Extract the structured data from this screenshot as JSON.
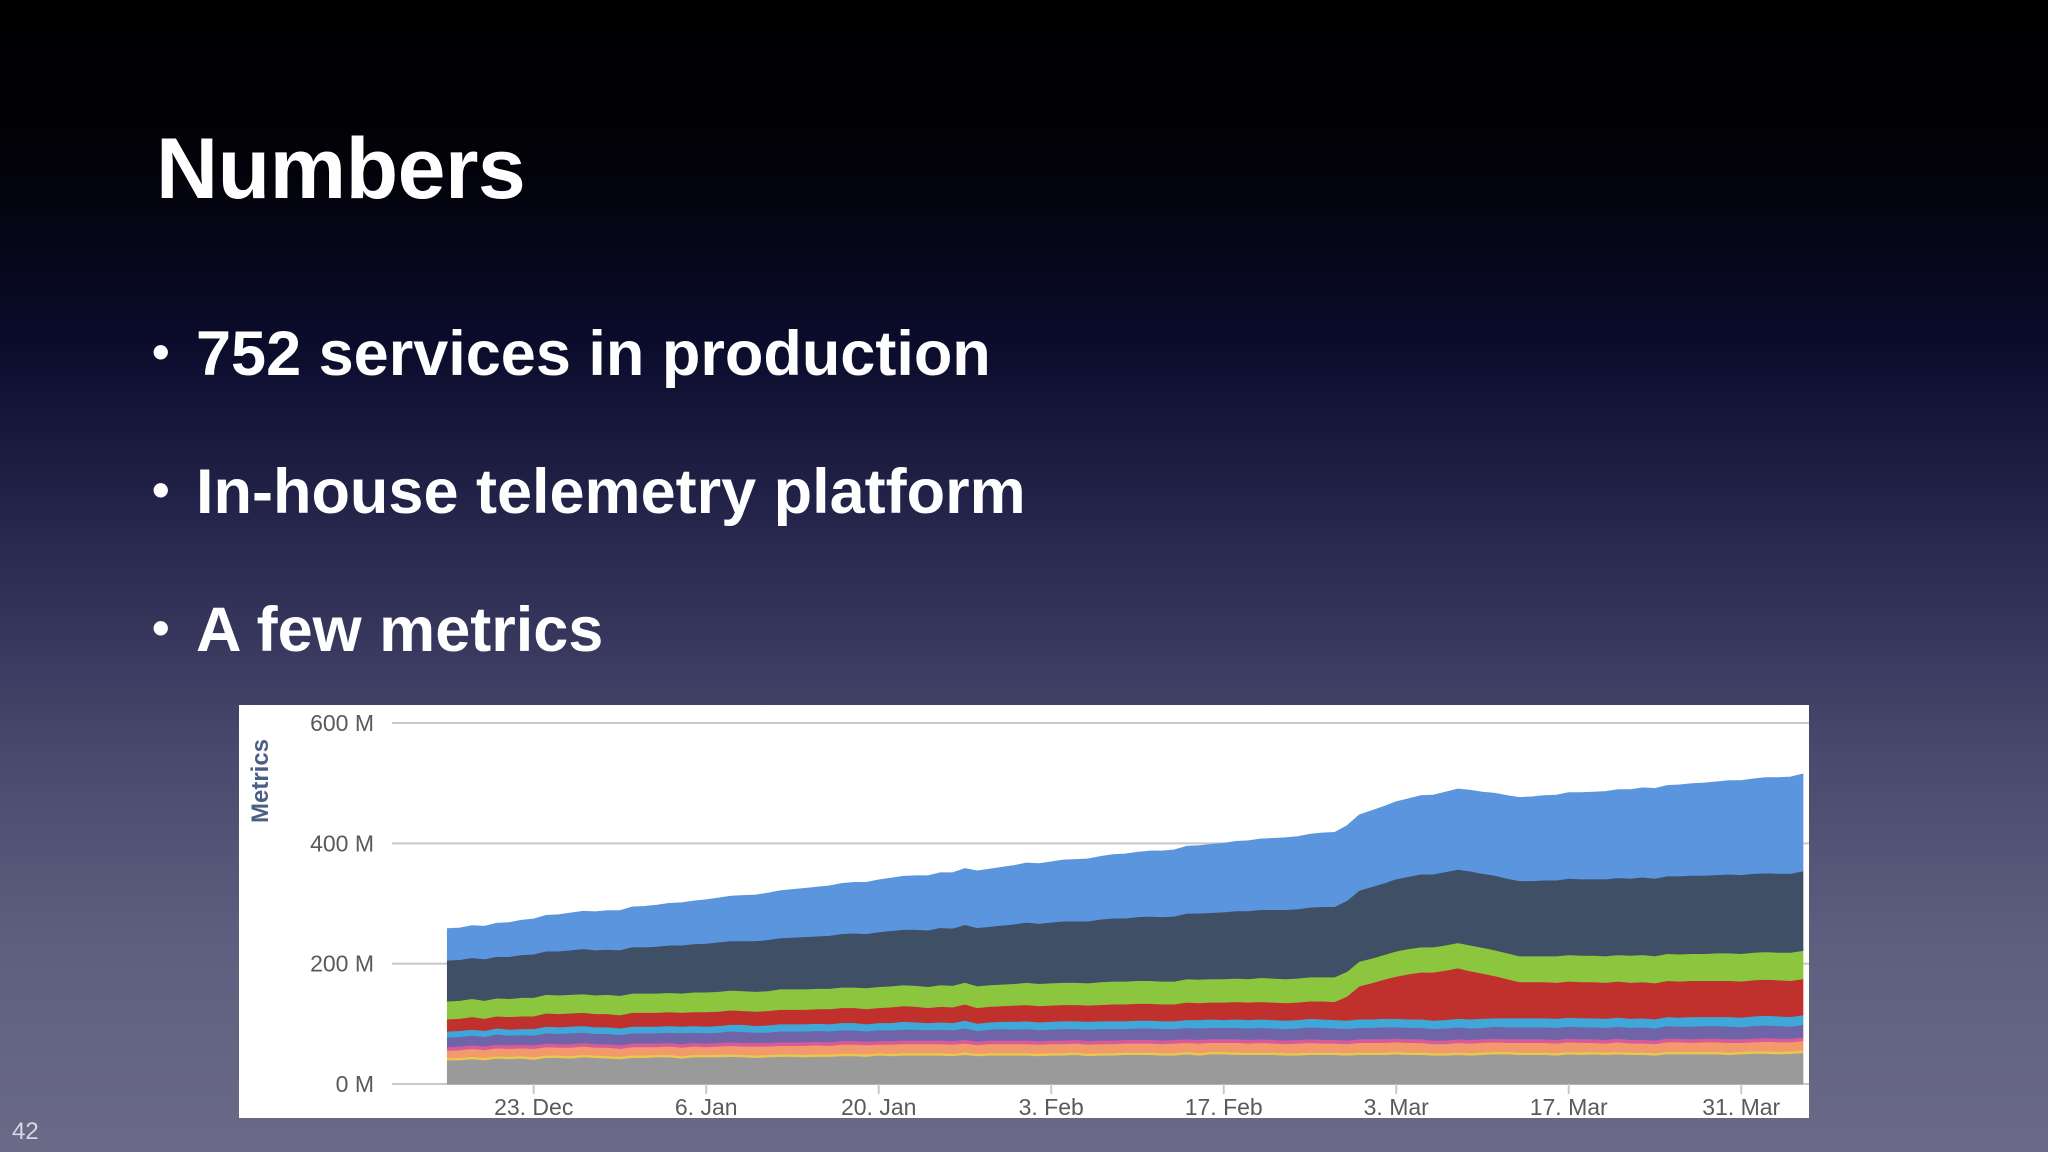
{
  "slide": {
    "title": "Numbers",
    "bullets": [
      "752 services in production",
      "In-house telemetry platform",
      "A few metrics"
    ],
    "page_number": "42"
  },
  "chart_data": {
    "type": "area",
    "stacked": true,
    "ylabel": "Metrics",
    "xlabel": "",
    "title": "",
    "ylim": [
      0,
      600
    ],
    "y_ticks": [
      {
        "value": 0,
        "label": "0 M"
      },
      {
        "value": 200,
        "label": "200 M"
      },
      {
        "value": 400,
        "label": "400 M"
      },
      {
        "value": 600,
        "label": "600 M"
      }
    ],
    "x_ticks": [
      {
        "x": 7,
        "label": "23. Dec"
      },
      {
        "x": 21,
        "label": "6. Jan"
      },
      {
        "x": 35,
        "label": "20. Jan"
      },
      {
        "x": 49,
        "label": "3. Feb"
      },
      {
        "x": 63,
        "label": "17. Feb"
      },
      {
        "x": 77,
        "label": "3. Mar"
      },
      {
        "x": 91,
        "label": "17. Mar"
      },
      {
        "x": 105,
        "label": "31. Mar"
      }
    ],
    "x_range": [
      -4.5,
      110.5
    ],
    "grid": true,
    "legend": "none",
    "x": [
      0,
      1,
      2,
      3,
      4,
      5,
      6,
      7,
      8,
      9,
      10,
      11,
      12,
      13,
      14,
      15,
      16,
      17,
      18,
      19,
      20,
      21,
      22,
      23,
      24,
      25,
      26,
      27,
      28,
      29,
      30,
      31,
      32,
      33,
      34,
      35,
      36,
      37,
      38,
      39,
      40,
      41,
      42,
      43,
      44,
      45,
      46,
      47,
      48,
      49,
      50,
      51,
      52,
      53,
      54,
      55,
      56,
      57,
      58,
      59,
      60,
      61,
      62,
      63,
      64,
      65,
      66,
      67,
      68,
      69,
      70,
      71,
      72,
      73,
      74,
      75,
      76,
      77,
      78,
      79,
      80,
      81,
      82,
      83,
      84,
      85,
      86,
      87,
      88,
      89,
      90,
      91,
      92,
      93,
      94,
      95,
      96,
      97,
      98,
      99,
      100,
      101,
      102,
      103,
      104,
      105,
      106,
      107,
      108,
      109,
      110
    ],
    "series": [
      {
        "color": "#9a9a9a",
        "values": [
          40,
          40,
          42,
          40,
          43,
          42,
          43,
          41,
          44,
          44,
          43,
          45,
          44,
          43,
          42,
          44,
          44,
          45,
          45,
          43,
          45,
          45,
          45,
          46,
          45,
          44,
          45,
          46,
          46,
          45,
          46,
          46,
          47,
          47,
          46,
          48,
          47,
          48,
          48,
          48,
          48,
          47,
          49,
          47,
          48,
          48,
          48,
          48,
          47,
          48,
          48,
          49,
          47,
          48,
          48,
          49,
          49,
          49,
          48,
          48,
          50,
          48,
          50,
          50,
          49,
          49,
          49,
          49,
          48,
          48,
          49,
          49,
          49,
          48,
          49,
          49,
          49,
          50,
          49,
          49,
          48,
          48,
          49,
          48,
          49,
          50,
          50,
          49,
          49,
          49,
          48,
          50,
          49,
          50,
          49,
          50,
          49,
          49,
          48,
          50,
          50,
          50,
          50,
          50,
          49,
          50,
          51,
          51,
          50,
          51,
          52
        ]
      },
      {
        "color": "#e9c84e",
        "values": [
          4,
          4,
          4,
          4,
          4,
          4,
          4,
          4,
          4,
          4,
          4,
          4,
          4,
          4,
          4,
          4,
          4,
          4,
          4,
          4,
          4,
          4,
          4,
          4,
          4,
          4,
          4,
          4,
          4,
          4,
          4,
          4,
          4,
          4,
          4,
          4,
          4,
          4,
          4,
          4,
          4,
          4,
          4,
          4,
          4,
          4,
          4,
          4,
          4,
          4,
          4,
          4,
          4,
          4,
          4,
          4,
          4,
          4,
          4,
          4,
          4,
          4,
          4,
          4,
          4,
          4,
          4,
          4,
          4,
          4,
          4,
          4,
          4,
          4,
          4,
          4,
          4,
          4,
          4,
          4,
          4,
          4,
          4,
          4,
          4,
          4,
          4,
          4,
          4,
          4,
          4,
          4,
          4,
          4,
          4,
          4,
          4,
          4,
          4,
          4,
          4,
          4,
          4,
          4,
          4,
          4,
          4,
          4,
          4,
          4,
          4
        ]
      },
      {
        "color": "#f29a6c",
        "values": [
          12,
          13,
          13,
          13,
          13,
          13,
          13,
          14,
          14,
          13,
          14,
          14,
          13,
          14,
          13,
          14,
          14,
          13,
          14,
          14,
          14,
          13,
          14,
          14,
          14,
          15,
          14,
          14,
          14,
          15,
          15,
          14,
          15,
          15,
          15,
          14,
          15,
          15,
          15,
          15,
          15,
          15,
          15,
          14,
          15,
          15,
          15,
          15,
          15,
          15,
          15,
          15,
          15,
          15,
          15,
          15,
          15,
          15,
          15,
          16,
          15,
          16,
          15,
          15,
          16,
          15,
          16,
          15,
          15,
          16,
          16,
          15,
          15,
          15,
          16,
          16,
          16,
          16,
          16,
          16,
          15,
          15,
          16,
          16,
          16,
          16,
          15,
          16,
          16,
          16,
          16,
          16,
          16,
          15,
          15,
          16,
          15,
          15,
          15,
          16,
          16,
          15,
          16,
          16,
          16,
          15,
          15,
          16,
          16,
          15,
          16
        ]
      },
      {
        "color": "#d85a9a",
        "values": [
          6,
          6,
          6,
          6,
          6,
          6,
          6,
          6,
          6,
          6,
          6,
          6,
          6,
          6,
          6,
          6,
          6,
          6,
          6,
          6,
          6,
          6,
          6,
          6,
          6,
          6,
          6,
          6,
          6,
          6,
          6,
          6,
          6,
          6,
          6,
          6,
          6,
          6,
          6,
          6,
          6,
          6,
          6,
          6,
          6,
          6,
          6,
          6,
          6,
          6,
          6,
          6,
          6,
          6,
          6,
          6,
          6,
          6,
          6,
          6,
          6,
          6,
          6,
          6,
          6,
          6,
          6,
          6,
          6,
          6,
          6,
          6,
          6,
          6,
          6,
          6,
          6,
          6,
          6,
          6,
          6,
          6,
          6,
          6,
          6,
          6,
          6,
          6,
          6,
          6,
          6,
          6,
          6,
          6,
          6,
          6,
          6,
          6,
          6,
          6,
          6,
          6,
          6,
          6,
          6,
          6,
          6,
          6,
          6,
          6,
          6
        ]
      },
      {
        "color": "#7064a8",
        "values": [
          16,
          16,
          16,
          16,
          17,
          16,
          16,
          16,
          17,
          17,
          18,
          17,
          17,
          17,
          17,
          17,
          17,
          17,
          17,
          18,
          17,
          17,
          17,
          18,
          18,
          17,
          17,
          18,
          18,
          18,
          18,
          18,
          18,
          18,
          17,
          18,
          18,
          18,
          18,
          17,
          18,
          18,
          19,
          18,
          18,
          19,
          18,
          19,
          18,
          18,
          19,
          18,
          19,
          19,
          19,
          18,
          19,
          19,
          19,
          18,
          19,
          19,
          19,
          19,
          19,
          19,
          19,
          19,
          19,
          19,
          20,
          20,
          19,
          19,
          19,
          19,
          20,
          19,
          19,
          19,
          19,
          20,
          20,
          19,
          19,
          20,
          20,
          20,
          20,
          20,
          20,
          20,
          20,
          20,
          20,
          20,
          20,
          21,
          20,
          21,
          20,
          21,
          21,
          21,
          21,
          20,
          21,
          21,
          21,
          20,
          21
        ]
      },
      {
        "color": "#3fa8d8",
        "values": [
          10,
          10,
          10,
          10,
          10,
          10,
          10,
          11,
          11,
          11,
          11,
          11,
          11,
          11,
          11,
          11,
          11,
          11,
          11,
          11,
          11,
          11,
          11,
          11,
          12,
          11,
          12,
          12,
          12,
          12,
          12,
          12,
          12,
          12,
          12,
          12,
          12,
          13,
          12,
          12,
          12,
          12,
          13,
          12,
          12,
          12,
          13,
          13,
          13,
          13,
          13,
          13,
          13,
          13,
          13,
          13,
          13,
          13,
          13,
          13,
          13,
          14,
          14,
          13,
          14,
          14,
          14,
          14,
          14,
          14,
          14,
          14,
          14,
          14,
          14,
          14,
          14,
          14,
          14,
          14,
          14,
          14,
          14,
          15,
          15,
          14,
          15,
          15,
          15,
          15,
          15,
          15,
          15,
          15,
          15,
          15,
          15,
          15,
          15,
          15,
          15,
          16,
          15,
          15,
          16,
          16,
          16,
          16,
          16,
          16,
          16
        ]
      },
      {
        "color": "#c0302c",
        "values": [
          20,
          20,
          21,
          20,
          20,
          21,
          21,
          21,
          22,
          22,
          22,
          22,
          22,
          22,
          22,
          23,
          23,
          23,
          23,
          23,
          23,
          24,
          24,
          24,
          23,
          24,
          24,
          24,
          24,
          24,
          24,
          25,
          25,
          25,
          25,
          25,
          26,
          26,
          26,
          25,
          26,
          26,
          27,
          26,
          26,
          26,
          27,
          27,
          27,
          27,
          27,
          27,
          27,
          27,
          28,
          28,
          28,
          28,
          28,
          28,
          29,
          28,
          28,
          29,
          29,
          29,
          29,
          29,
          29,
          29,
          29,
          30,
          30,
          40,
          55,
          60,
          65,
          70,
          75,
          78,
          80,
          82,
          84,
          80,
          75,
          70,
          65,
          60,
          60,
          60,
          60,
          60,
          60,
          60,
          60,
          60,
          60,
          60,
          60,
          60,
          60,
          60,
          60,
          60,
          60,
          60,
          60,
          60,
          60,
          60,
          60
        ]
      },
      {
        "color": "#8cc63f",
        "values": [
          30,
          30,
          30,
          30,
          30,
          30,
          31,
          31,
          31,
          31,
          31,
          31,
          31,
          32,
          32,
          32,
          32,
          32,
          32,
          32,
          33,
          33,
          33,
          33,
          33,
          33,
          33,
          34,
          34,
          34,
          34,
          34,
          34,
          34,
          35,
          35,
          35,
          35,
          35,
          35,
          36,
          36,
          36,
          36,
          36,
          36,
          36,
          37,
          37,
          37,
          37,
          37,
          37,
          38,
          38,
          38,
          38,
          38,
          38,
          38,
          39,
          39,
          39,
          39,
          39,
          39,
          40,
          40,
          40,
          40,
          40,
          40,
          41,
          41,
          41,
          41,
          41,
          42,
          42,
          42,
          42,
          42,
          42,
          43,
          43,
          43,
          43,
          43,
          43,
          43,
          44,
          44,
          44,
          44,
          44,
          44,
          45,
          45,
          45,
          45,
          45,
          45,
          45,
          46,
          46,
          46,
          46,
          46,
          46,
          47,
          47
        ]
      },
      {
        "color": "#3e4f66",
        "values": [
          68,
          68,
          68,
          69,
          69,
          70,
          71,
          72,
          72,
          73,
          74,
          75,
          75,
          75,
          76,
          77,
          77,
          78,
          79,
          80,
          80,
          81,
          82,
          82,
          83,
          84,
          85,
          85,
          86,
          87,
          87,
          88,
          89,
          90,
          90,
          91,
          92,
          92,
          93,
          94,
          95,
          95,
          96,
          97,
          97,
          98,
          99,
          100,
          100,
          101,
          102,
          102,
          103,
          104,
          105,
          105,
          106,
          107,
          107,
          108,
          109,
          110,
          110,
          111,
          112,
          113,
          113,
          114,
          115,
          115,
          116,
          117,
          117,
          118,
          118,
          119,
          119,
          120,
          120,
          121,
          121,
          122,
          122,
          123,
          123,
          124,
          124,
          125,
          125,
          126,
          126,
          127,
          127,
          127,
          128,
          128,
          128,
          129,
          129,
          129,
          130,
          130,
          130,
          130,
          131,
          131,
          131,
          131,
          131,
          131,
          132
        ]
      },
      {
        "color": "#5a95de",
        "values": [
          52,
          52,
          53,
          54,
          55,
          56,
          57,
          58,
          59,
          60,
          61,
          62,
          63,
          64,
          65,
          66,
          67,
          68,
          69,
          70,
          71,
          72,
          73,
          74,
          75,
          76,
          77,
          78,
          79,
          80,
          81,
          82,
          83,
          84,
          85,
          86,
          87,
          88,
          89,
          90,
          91,
          92,
          93,
          94,
          95,
          96,
          97,
          98,
          99,
          100,
          101,
          102,
          103,
          104,
          105,
          106,
          107,
          108,
          109,
          110,
          111,
          112,
          113,
          114,
          115,
          116,
          117,
          118,
          119,
          120,
          121,
          122,
          123,
          124,
          125,
          126,
          127,
          128,
          129,
          130,
          131,
          132,
          133,
          134,
          135,
          136,
          137,
          138,
          139,
          140,
          141,
          142,
          143,
          144,
          145,
          146,
          147,
          148,
          149,
          150,
          151,
          152,
          153,
          154,
          155,
          156,
          157,
          158,
          159,
          160,
          161
        ]
      }
    ]
  }
}
